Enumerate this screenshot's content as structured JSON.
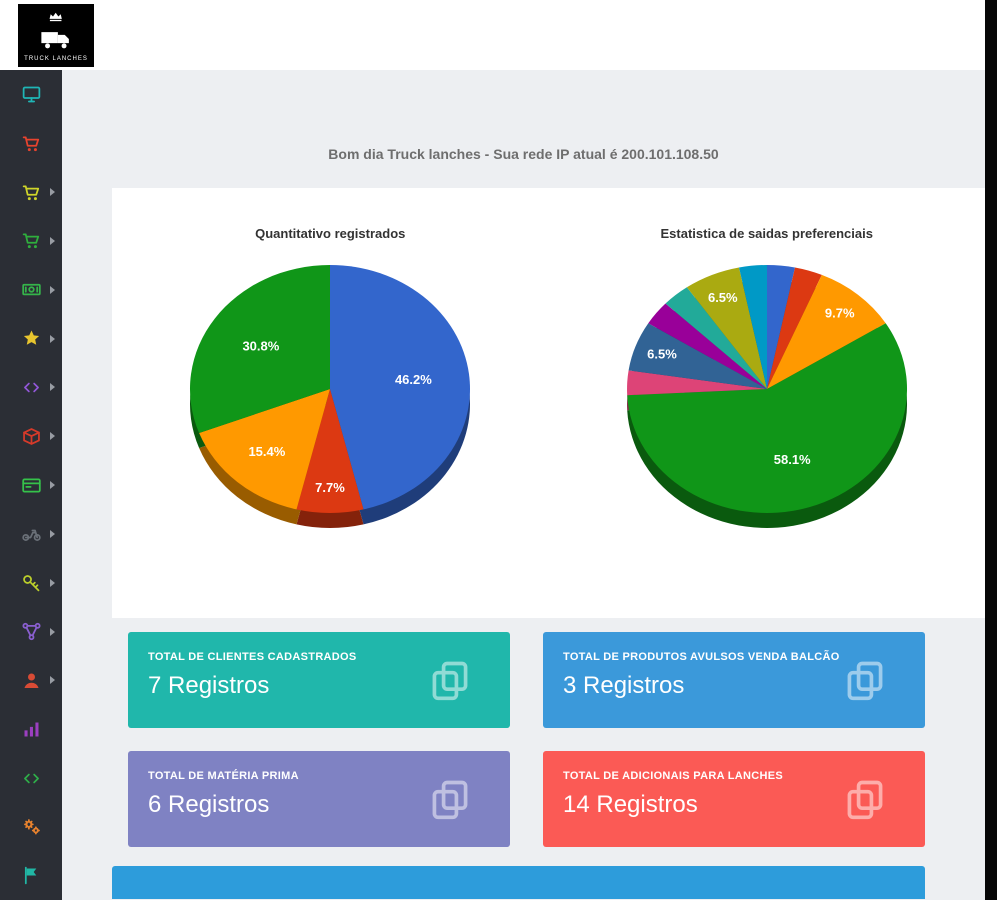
{
  "header": {
    "greeting": "Bom dia Truck lanches - Sua rede IP atual é 200.101.108.50"
  },
  "logo": {
    "text": "TRUCK LANCHES"
  },
  "sidebar": {
    "items": [
      {
        "id": "dashboard",
        "icon": "monitor",
        "color": "#1fb6b6",
        "caret": false
      },
      {
        "id": "orders",
        "icon": "cart",
        "color": "#e8432e",
        "caret": false
      },
      {
        "id": "counter-sales",
        "icon": "cart",
        "color": "#cfd52a",
        "caret": true
      },
      {
        "id": "sales",
        "icon": "cart",
        "color": "#2fae3d",
        "caret": true
      },
      {
        "id": "cash-register",
        "icon": "banknote",
        "color": "#35b44a",
        "caret": true
      },
      {
        "id": "highlights",
        "icon": "star",
        "color": "#e8c52e",
        "caret": true
      },
      {
        "id": "integrations",
        "icon": "code",
        "color": "#9257d8",
        "caret": true
      },
      {
        "id": "stock",
        "icon": "box",
        "color": "#d63a2a",
        "caret": true
      },
      {
        "id": "menu-cards",
        "icon": "card",
        "color": "#35c24a",
        "caret": true
      },
      {
        "id": "delivery",
        "icon": "motorcycle",
        "color": "#6a7078",
        "caret": true
      },
      {
        "id": "access-keys",
        "icon": "key",
        "color": "#bccf2b",
        "caret": true
      },
      {
        "id": "network",
        "icon": "share",
        "color": "#8a5fd0",
        "caret": true
      },
      {
        "id": "users",
        "icon": "user",
        "color": "#d84b35",
        "caret": true
      },
      {
        "id": "reports",
        "icon": "chart",
        "color": "#9b3fc0",
        "caret": false
      },
      {
        "id": "developer",
        "icon": "code",
        "color": "#2fae4a",
        "caret": false
      },
      {
        "id": "settings",
        "icon": "gears",
        "color": "#e8822e",
        "caret": false
      },
      {
        "id": "statistics",
        "icon": "flag",
        "color": "#21b7a5",
        "caret": false
      }
    ]
  },
  "chart_data": [
    {
      "type": "pie",
      "is3d": true,
      "title": "Quantitativo registrados",
      "legend": "none",
      "start_angle": "top",
      "direction": "clockwise",
      "slices": [
        {
          "value": 46.2,
          "label": "46.2%",
          "color": "#3366cc"
        },
        {
          "value": 7.7,
          "label": "7.7%",
          "color": "#dc3912"
        },
        {
          "value": 15.4,
          "label": "15.4%",
          "color": "#ff9900"
        },
        {
          "value": 30.8,
          "label": "30.8%",
          "color": "#109618"
        }
      ]
    },
    {
      "type": "pie",
      "is3d": true,
      "title": "Estatistica de saidas preferenciais",
      "legend": "none",
      "start_angle": "top",
      "direction": "clockwise",
      "slices": [
        {
          "value": 3.2,
          "label": "",
          "color": "#3366cc"
        },
        {
          "value": 3.2,
          "label": "",
          "color": "#dc3912"
        },
        {
          "value": 9.7,
          "label": "9.7%",
          "color": "#ff9900"
        },
        {
          "value": 58.1,
          "label": "58.1%",
          "color": "#109618"
        },
        {
          "value": 3.2,
          "label": "",
          "color": "#dd4477"
        },
        {
          "value": 6.5,
          "label": "6.5%",
          "color": "#316395"
        },
        {
          "value": 3.2,
          "label": "",
          "color": "#990099"
        },
        {
          "value": 3.2,
          "label": "",
          "color": "#22aa99"
        },
        {
          "value": 6.5,
          "label": "6.5%",
          "color": "#aaaa11"
        },
        {
          "value": 3.2,
          "label": "",
          "color": "#0099c6"
        }
      ]
    }
  ],
  "cards": [
    {
      "title": "TOTAL DE CLIENTES CADASTRADOS",
      "value": "7 Registros",
      "color": "#20b7ab"
    },
    {
      "title": "TOTAL DE PRODUTOS AVULSOS VENDA BALCÃO",
      "value": "3 Registros",
      "color": "#3b99da"
    },
    {
      "title": "TOTAL DE MATÉRIA PRIMA",
      "value": "6 Registros",
      "color": "#7f82c3"
    },
    {
      "title": "TOTAL DE ADICIONAIS PARA LANCHES",
      "value": "14 Registros",
      "color": "#fb5a55"
    }
  ],
  "footer_bar_color": "#2d9cdb"
}
